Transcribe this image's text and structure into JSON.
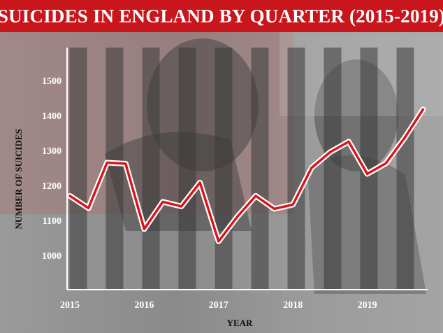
{
  "title": "SUICIDES IN ENGLAND BY QUARTER (2015-2019)",
  "colors": {
    "title_bg": "#c8161c",
    "line": "#d6161c",
    "line_halo": "#ffffff",
    "band": "#3a3a3a"
  },
  "chart_data": {
    "type": "line",
    "title": "SUICIDES IN ENGLAND BY QUARTER (2015-2019)",
    "xlabel": "YEAR",
    "ylabel": "NUMBER OF SUICIDES",
    "x_tick_labels": [
      "2015",
      "2016",
      "2017",
      "2018",
      "2019"
    ],
    "y_ticks": [
      1000,
      1100,
      1200,
      1300,
      1400,
      1500
    ],
    "ylim": [
      900,
      1600
    ],
    "grid": false,
    "x": [
      "2015 Q1",
      "2015 Q2",
      "2015 Q3",
      "2015 Q4",
      "2016 Q1",
      "2016 Q2",
      "2016 Q3",
      "2016 Q4",
      "2017 Q1",
      "2017 Q2",
      "2017 Q3",
      "2017 Q4",
      "2018 Q1",
      "2018 Q2",
      "2018 Q3",
      "2018 Q4",
      "2019 Q1",
      "2019 Q2",
      "2019 Q3",
      "2019 Q4"
    ],
    "series": [
      {
        "values": [
          1170,
          1135,
          1265,
          1262,
          1075,
          1153,
          1140,
          1208,
          1040,
          1110,
          1170,
          1133,
          1145,
          1250,
          1295,
          1325,
          1233,
          1263,
          1335,
          1417
        ]
      }
    ]
  }
}
